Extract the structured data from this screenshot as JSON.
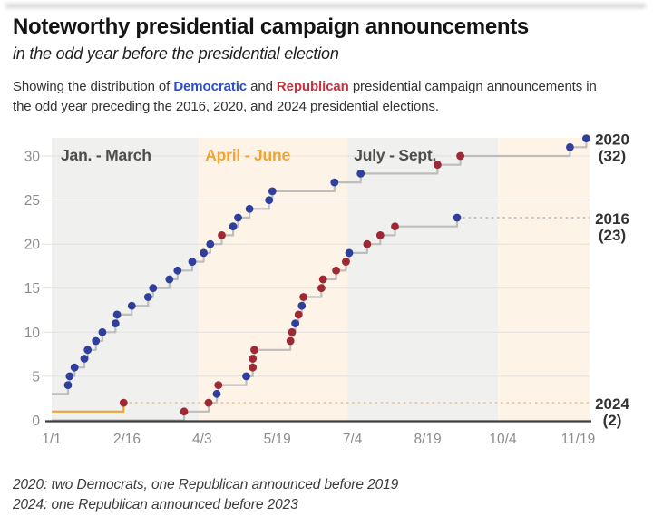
{
  "header": {
    "title": "Noteworthy presidential campaign announcements",
    "subtitle": "in the odd year before the presidential election",
    "description": {
      "prefix": "Showing the distribution of ",
      "dem_word": "Democratic",
      "mid": " and ",
      "rep_word": "Republican",
      "suffix": " presidential campaign announcements in the odd year preceding the 2016, 2020, and 2024 presidential elections."
    }
  },
  "footnotes": [
    "2020: two Democrats, one Republican announced before 2019",
    "2024: one Republican announced before 2023"
  ],
  "colors": {
    "dem_text": "#2b4ccd",
    "rep_text": "#c4333f",
    "axis_text": "#8c8c8c",
    "axis_line": "#3f3f3f",
    "grid": "#e2e0de",
    "right_label": "#333333"
  },
  "chart_data": {
    "type": "line",
    "subtype": "cumulative-step",
    "title": "Noteworthy presidential campaign announcements",
    "xlabel": "",
    "ylabel": "",
    "x_axis": {
      "tick_labels": [
        "1/1",
        "2/16",
        "4/3",
        "5/19",
        "7/4",
        "8/19",
        "10/4",
        "11/19"
      ],
      "domain_days": [
        0,
        329
      ]
    },
    "y_axis": {
      "ticks": [
        0,
        5,
        10,
        15,
        20,
        25,
        30
      ],
      "range": [
        0,
        33
      ]
    },
    "grid": true,
    "legend_position": "right-of-lines",
    "party_colors": {
      "D": "#303f9b",
      "R": "#9e2833"
    },
    "period_bands": [
      {
        "label": "Jan. - March",
        "start_day": 0,
        "end_day": 90,
        "fill": "#f0f0ef",
        "label_color": "#4d4d4d"
      },
      {
        "label": "April - June",
        "start_day": 90,
        "end_day": 181,
        "fill": "#fdf4e7",
        "label_color": "#f2a432"
      },
      {
        "label": "July - Sept.",
        "start_day": 181,
        "end_day": 273,
        "fill": "#f0f0ef",
        "label_color": "#4d4d4d"
      },
      {
        "label": "",
        "start_day": 273,
        "end_day": 329,
        "fill": "#fdf4e7",
        "label_color": "#4d4d4d"
      }
    ],
    "series": [
      {
        "name": "2020",
        "end_label": "2020",
        "end_count": "(32)",
        "total": 32,
        "start_value": 3,
        "line_color": "#bdbdbd",
        "trailing_dotted": false,
        "trail_color": "#bdbdbd",
        "points": [
          [
            "1/11",
            4,
            "D"
          ],
          [
            "1/12",
            5,
            "D"
          ],
          [
            "1/15",
            6,
            "D"
          ],
          [
            "1/21",
            7,
            "D"
          ],
          [
            "1/23",
            8,
            "D"
          ],
          [
            "1/28",
            9,
            "D"
          ],
          [
            "2/1",
            10,
            "D"
          ],
          [
            "2/9",
            11,
            "D"
          ],
          [
            "2/10",
            12,
            "D"
          ],
          [
            "2/19",
            13,
            "D"
          ],
          [
            "3/1",
            14,
            "D"
          ],
          [
            "3/4",
            15,
            "D"
          ],
          [
            "3/14",
            16,
            "D"
          ],
          [
            "3/19",
            17,
            "D"
          ],
          [
            "3/28",
            18,
            "D"
          ],
          [
            "4/4",
            19,
            "D"
          ],
          [
            "4/8",
            20,
            "D"
          ],
          [
            "4/15",
            21,
            "R"
          ],
          [
            "4/22",
            22,
            "D"
          ],
          [
            "4/25",
            23,
            "D"
          ],
          [
            "5/2",
            24,
            "D"
          ],
          [
            "5/14",
            25,
            "D"
          ],
          [
            "5/16",
            26,
            "D"
          ],
          [
            "6/23",
            27,
            "D"
          ],
          [
            "7/9",
            28,
            "D"
          ],
          [
            "8/25",
            29,
            "R"
          ],
          [
            "9/8",
            30,
            "R"
          ],
          [
            "11/14",
            31,
            "D"
          ],
          [
            "11/24",
            32,
            "D"
          ]
        ]
      },
      {
        "name": "2016",
        "end_label": "2016",
        "end_count": "(23)",
        "total": 23,
        "start_value": 0,
        "line_color": "#bdbdbd",
        "trailing_dotted": true,
        "trail_color": "#bcbcbc",
        "points": [
          [
            "3/23",
            1,
            "R"
          ],
          [
            "4/7",
            2,
            "R"
          ],
          [
            "4/12",
            3,
            "D"
          ],
          [
            "4/13",
            4,
            "R"
          ],
          [
            "4/30",
            5,
            "D"
          ],
          [
            "5/4",
            6,
            "R"
          ],
          [
            "5/4",
            7,
            "R"
          ],
          [
            "5/5",
            8,
            "R"
          ],
          [
            "5/27",
            9,
            "R"
          ],
          [
            "5/28",
            10,
            "R"
          ],
          [
            "5/30",
            11,
            "D"
          ],
          [
            "6/1",
            12,
            "R"
          ],
          [
            "6/3",
            13,
            "D"
          ],
          [
            "6/4",
            14,
            "R"
          ],
          [
            "6/15",
            15,
            "R"
          ],
          [
            "6/16",
            16,
            "R"
          ],
          [
            "6/24",
            17,
            "R"
          ],
          [
            "6/30",
            18,
            "R"
          ],
          [
            "7/2",
            19,
            "D"
          ],
          [
            "7/13",
            20,
            "R"
          ],
          [
            "7/21",
            21,
            "R"
          ],
          [
            "7/30",
            22,
            "R"
          ],
          [
            "9/6",
            23,
            "D"
          ]
        ]
      },
      {
        "name": "2024",
        "end_label": "2024",
        "end_count": "(2)",
        "total": 2,
        "start_value": 1,
        "line_color": "#f2a432",
        "trailing_dotted": true,
        "trail_color": "#e9c69c",
        "points": [
          [
            "2/14",
            2,
            "R"
          ]
        ]
      }
    ]
  }
}
